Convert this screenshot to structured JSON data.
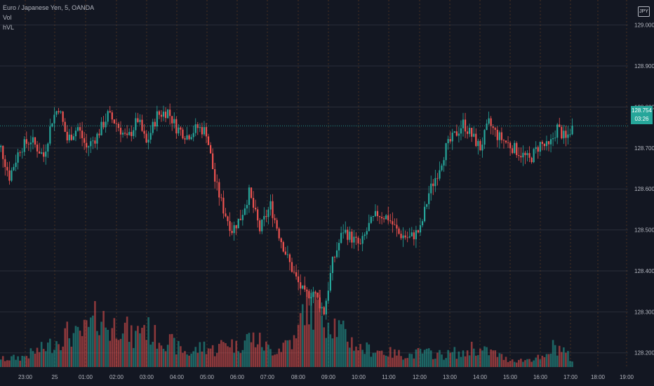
{
  "symbol_title": "Euro / Japanese Yen, 5, OANDA",
  "indicators": [
    "Vol",
    "hVL"
  ],
  "currency_badge": "JPY",
  "last_price": {
    "value": "128.754",
    "countdown": "03:26"
  },
  "colors": {
    "up": "#26a69a",
    "down": "#ef5350",
    "background": "#131722",
    "grid": "#2a2e39",
    "session_line": "#b46a26",
    "axis_text": "#b2b5be"
  },
  "chart_data": {
    "type": "candlestick",
    "title": "Euro / Japanese Yen, 5, OANDA",
    "interval_minutes": 5,
    "y_ticks": [
      "128.200",
      "128.300",
      "128.400",
      "128.500",
      "128.600",
      "128.700",
      "128.800",
      "128.900",
      "129.000"
    ],
    "ylim": [
      128.155,
      129.02
    ],
    "x_ticks": [
      "23:00",
      "25",
      "01:00",
      "02:00",
      "03:00",
      "04:00",
      "05:00",
      "06:00",
      "07:00",
      "08:00",
      "09:00",
      "10:00",
      "11:00",
      "12:00",
      "13:00",
      "14:00",
      "15:00",
      "16:00",
      "17:00",
      "18:00",
      "19:00"
    ],
    "time_start": "22:25",
    "last_price": 128.754,
    "close_anchors": [
      [
        0,
        128.69
      ],
      [
        4,
        128.7
      ],
      [
        8,
        128.63
      ],
      [
        13,
        128.7
      ],
      [
        18,
        128.72
      ],
      [
        24,
        128.68
      ],
      [
        28,
        128.77
      ],
      [
        31,
        128.8
      ],
      [
        35,
        128.72
      ],
      [
        40,
        128.75
      ],
      [
        44,
        128.7
      ],
      [
        49,
        128.73
      ],
      [
        54,
        128.78
      ],
      [
        58,
        128.76
      ],
      [
        63,
        128.72
      ],
      [
        68,
        128.77
      ],
      [
        72,
        128.71
      ],
      [
        77,
        128.78
      ],
      [
        82,
        128.79
      ],
      [
        86,
        128.75
      ],
      [
        91,
        128.73
      ],
      [
        96,
        128.75
      ],
      [
        100,
        128.74
      ],
      [
        104,
        128.62
      ],
      [
        108,
        128.55
      ],
      [
        112,
        128.5
      ],
      [
        116,
        128.53
      ],
      [
        120,
        128.59
      ],
      [
        125,
        128.5
      ],
      [
        130,
        128.56
      ],
      [
        134,
        128.49
      ],
      [
        138,
        128.43
      ],
      [
        142,
        128.38
      ],
      [
        146,
        128.34
      ],
      [
        150,
        128.35
      ],
      [
        155,
        128.3
      ],
      [
        159,
        128.42
      ],
      [
        164,
        128.5
      ],
      [
        168,
        128.48
      ],
      [
        172,
        128.46
      ],
      [
        176,
        128.51
      ],
      [
        180,
        128.54
      ],
      [
        185,
        128.53
      ],
      [
        190,
        128.49
      ],
      [
        195,
        128.48
      ],
      [
        200,
        128.5
      ],
      [
        204,
        128.59
      ],
      [
        208,
        128.64
      ],
      [
        212,
        128.7
      ],
      [
        216,
        128.73
      ],
      [
        220,
        128.76
      ],
      [
        224,
        128.73
      ],
      [
        228,
        128.7
      ],
      [
        232,
        128.76
      ],
      [
        236,
        128.73
      ],
      [
        241,
        128.71
      ],
      [
        246,
        128.69
      ],
      [
        251,
        128.67
      ],
      [
        256,
        128.71
      ],
      [
        260,
        128.7
      ],
      [
        264,
        128.75
      ],
      [
        268,
        128.72
      ],
      [
        271,
        128.754
      ]
    ],
    "volume_anchors": [
      [
        0,
        10
      ],
      [
        14,
        15
      ],
      [
        24,
        28
      ],
      [
        28,
        35
      ],
      [
        35,
        50
      ],
      [
        40,
        45
      ],
      [
        46,
        60
      ],
      [
        50,
        80
      ],
      [
        55,
        55
      ],
      [
        60,
        70
      ],
      [
        66,
        40
      ],
      [
        70,
        65
      ],
      [
        76,
        45
      ],
      [
        82,
        40
      ],
      [
        86,
        30
      ],
      [
        92,
        20
      ],
      [
        99,
        32
      ],
      [
        104,
        25
      ],
      [
        110,
        40
      ],
      [
        114,
        30
      ],
      [
        120,
        45
      ],
      [
        125,
        38
      ],
      [
        130,
        25
      ],
      [
        134,
        28
      ],
      [
        138,
        40
      ],
      [
        142,
        38
      ],
      [
        146,
        100
      ],
      [
        150,
        85
      ],
      [
        153,
        95
      ],
      [
        156,
        75
      ],
      [
        160,
        65
      ],
      [
        164,
        50
      ],
      [
        168,
        38
      ],
      [
        172,
        28
      ],
      [
        180,
        25
      ],
      [
        188,
        20
      ],
      [
        196,
        18
      ],
      [
        200,
        22
      ],
      [
        206,
        20
      ],
      [
        212,
        18
      ],
      [
        216,
        22
      ],
      [
        220,
        18
      ],
      [
        224,
        30
      ],
      [
        228,
        24
      ],
      [
        234,
        22
      ],
      [
        240,
        12
      ],
      [
        248,
        10
      ],
      [
        254,
        14
      ],
      [
        258,
        12
      ],
      [
        262,
        30
      ],
      [
        266,
        28
      ],
      [
        271,
        10
      ]
    ]
  }
}
